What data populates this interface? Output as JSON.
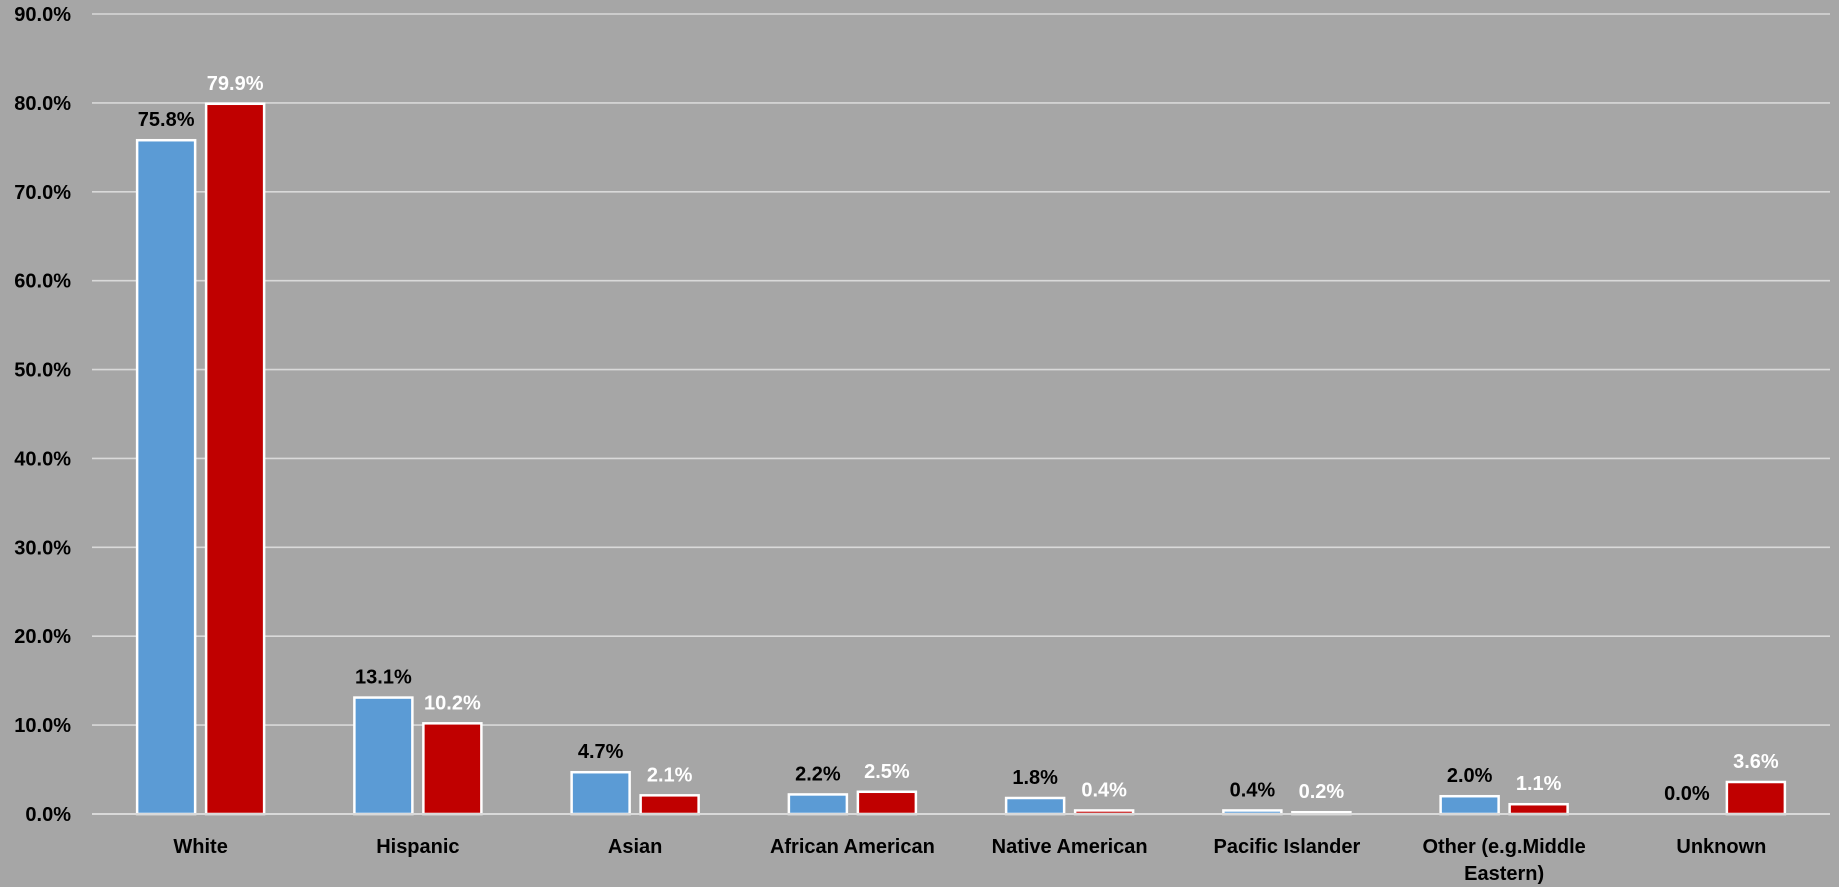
{
  "chart_data": {
    "type": "bar",
    "title": "",
    "xlabel": "",
    "ylabel": "",
    "ylim": [
      0,
      90
    ],
    "yticks": [
      0,
      10,
      20,
      30,
      40,
      50,
      60,
      70,
      80,
      90
    ],
    "ytick_labels": [
      "0.0%",
      "10.0%",
      "20.0%",
      "30.0%",
      "40.0%",
      "50.0%",
      "60.0%",
      "70.0%",
      "80.0%",
      "90.0%"
    ],
    "grid": true,
    "legend": "none",
    "categories": [
      [
        "White"
      ],
      [
        "Hispanic"
      ],
      [
        "Asian"
      ],
      [
        "African American"
      ],
      [
        "Native American"
      ],
      [
        "Pacific Islander"
      ],
      [
        "Other (e.g.Middle",
        "Eastern)"
      ],
      [
        "Unknown"
      ]
    ],
    "series": [
      {
        "color": "#5b9bd5",
        "label_color": "#000000",
        "values": [
          75.8,
          13.1,
          4.7,
          2.2,
          1.8,
          0.4,
          2.0,
          0.0
        ],
        "labels": [
          "75.8%",
          "13.1%",
          "4.7%",
          "2.2%",
          "1.8%",
          "0.4%",
          "2.0%",
          "0.0%"
        ]
      },
      {
        "color": "#c00000",
        "label_color": "#ffffff",
        "values": [
          79.9,
          10.2,
          2.1,
          2.5,
          0.4,
          0.2,
          1.1,
          3.6
        ],
        "labels": [
          "79.9%",
          "10.2%",
          "2.1%",
          "2.5%",
          "0.4%",
          "0.2%",
          "1.1%",
          "3.6%"
        ]
      }
    ]
  }
}
